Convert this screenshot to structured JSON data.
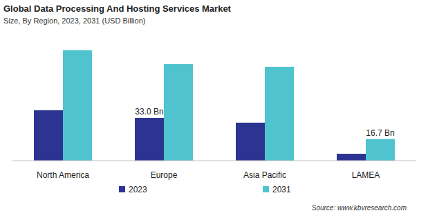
{
  "chart_data": {
    "type": "bar",
    "title": "Global Data Processing And Hosting Services Market",
    "subtitle": "Size, By Region, 2023, 2031 (USD Billion)",
    "source": "Source: www.kbvresearch.com",
    "categories": [
      "North America",
      "Europe",
      "Asia Pacific",
      "LAMEA"
    ],
    "series": [
      {
        "name": "2023",
        "color": "#2c3491",
        "values": [
          38.9,
          33.0,
          29.3,
          5.3
        ],
        "value_labels": [
          null,
          "33.0 Bn",
          null,
          null
        ]
      },
      {
        "name": "2031",
        "color": "#4fc4cf",
        "values": [
          85.2,
          74.5,
          72.4,
          16.7
        ],
        "value_labels": [
          null,
          null,
          null,
          "16.7 Bn"
        ]
      }
    ],
    "ylim": [
      0,
      100
    ],
    "data_labels": true,
    "tick_labels": "x",
    "legend": "bottom"
  }
}
